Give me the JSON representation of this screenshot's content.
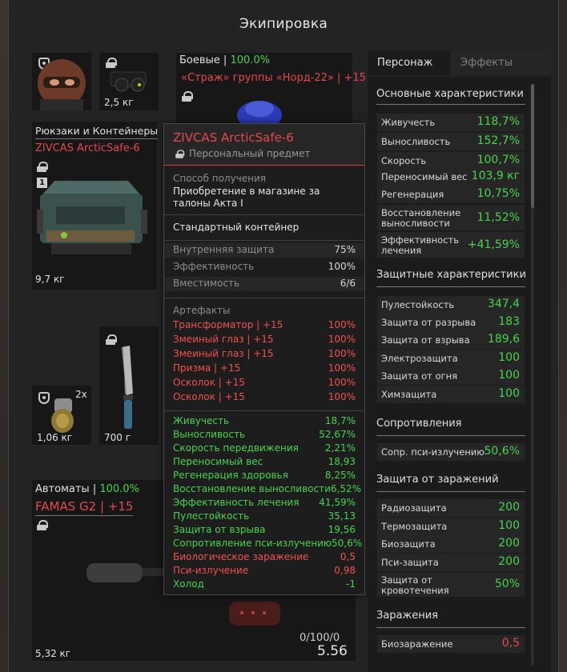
{
  "title": "Экипировка",
  "slots": {
    "head_weight": "2,5 кг",
    "armor_header_category": "Боевые",
    "armor_header_sep": " | ",
    "armor_header_pct": "100.0%",
    "armor_name": "«Страж» группы «Норд-22» | +15",
    "backpack_category": "Рюкзаки и Контейнеры",
    "backpack_name": "ZIVCAS ArcticSafe-6",
    "backpack_badge": "1",
    "backpack_weight": "9,7 кг",
    "grenade_count": "2x",
    "grenade_weight": "1,06 кг",
    "knife_weight": "700 г",
    "weapon_category": "Автоматы",
    "weapon_sep": " | ",
    "weapon_pct": "100.0%",
    "weapon_name": "FAMAS G2 | +15",
    "weapon_weight": "5,32 кг",
    "total_ratio": "0/100/0",
    "total_weight": "5.56"
  },
  "tooltip": {
    "name": "ZIVCAS ArcticSafe-6",
    "personal": "Персональный предмет",
    "acquire_label": "Способ получения",
    "acquire_value": "Приобретение в магазине за талоны Акта I",
    "type": "Стандартный контейнер",
    "props": [
      {
        "k": "Внутренняя защита",
        "v": "75%"
      },
      {
        "k": "Эффективность",
        "v": "100%"
      },
      {
        "k": "Вместимость",
        "v": "6/6"
      }
    ],
    "artifacts_label": "Артефакты",
    "artifacts": [
      {
        "k": "Трансформатор | +15",
        "v": "100%"
      },
      {
        "k": "Змеиный глаз | +15",
        "v": "100%"
      },
      {
        "k": "Змеиный глаз | +15",
        "v": "100%"
      },
      {
        "k": "Призма | +15",
        "v": "100%"
      },
      {
        "k": "Осколок | +15",
        "v": "100%"
      },
      {
        "k": "Осколок | +15",
        "v": "100%"
      }
    ],
    "effects": [
      {
        "k": "Живучесть",
        "v": "18,7%",
        "c": "green"
      },
      {
        "k": "Выносливость",
        "v": "52,67%",
        "c": "green"
      },
      {
        "k": "Скорость передвижения",
        "v": "2,21%",
        "c": "green"
      },
      {
        "k": "Переносимый вес",
        "v": "18,93",
        "c": "green"
      },
      {
        "k": "Регенерация здоровья",
        "v": "8,25%",
        "c": "green"
      },
      {
        "k": "Восстановление выносливости",
        "v": "6,52%",
        "c": "green"
      },
      {
        "k": "Эффективность лечения",
        "v": "41,59%",
        "c": "green"
      },
      {
        "k": "Пулестойкость",
        "v": "35,13",
        "c": "green"
      },
      {
        "k": "Защита от взрыва",
        "v": "19,56",
        "c": "green"
      },
      {
        "k": "Сопротивление пси-излучению",
        "v": "50,6%",
        "c": "green"
      },
      {
        "k": "Биологическое заражение",
        "v": "0,5",
        "c": "red"
      },
      {
        "k": "Пси-излучение",
        "v": "0,98",
        "c": "red"
      },
      {
        "k": "Холод",
        "v": "-1",
        "c": "green"
      }
    ]
  },
  "panel": {
    "tab_character": "Персонаж",
    "tab_effects": "Эффекты",
    "sections": [
      {
        "title": "Основные характеристики"
      },
      {
        "title": "Защитные характеристики"
      },
      {
        "title": "Сопротивления"
      },
      {
        "title": "Защита от заражений"
      },
      {
        "title": "Заражения"
      }
    ],
    "main": [
      {
        "k": "Живучесть",
        "v": "118,7%"
      },
      {
        "k": "Выносливость",
        "v": "152,7%"
      },
      {
        "k": "Скорость",
        "v": "100,7%"
      },
      {
        "k": "Переносимый вес",
        "v": "103,9 кг"
      },
      {
        "k": "Регенерация",
        "v": "10,75%"
      },
      {
        "k": "Восстановление выносливости",
        "v": "11,52%"
      },
      {
        "k": "Эффективность лечения",
        "v": "+41,59%"
      }
    ],
    "protect": [
      {
        "k": "Пулестойкость",
        "v": "347,4"
      },
      {
        "k": "Защита от разрыва",
        "v": "183"
      },
      {
        "k": "Защита от взрыва",
        "v": "189,6"
      },
      {
        "k": "Электрозащита",
        "v": "100"
      },
      {
        "k": "Защита от огня",
        "v": "100"
      },
      {
        "k": "Химзащита",
        "v": "100"
      }
    ],
    "resist": [
      {
        "k": "Сопр. пси-излучению",
        "v": "50,6%"
      }
    ],
    "infect_prot": [
      {
        "k": "Радиозащита",
        "v": "200"
      },
      {
        "k": "Термозащита",
        "v": "100"
      },
      {
        "k": "Биозащита",
        "v": "200"
      },
      {
        "k": "Пси-защита",
        "v": "200"
      },
      {
        "k": "Защита от кровотечения",
        "v": "50%"
      }
    ],
    "infect": [
      {
        "k": "Биозаражение",
        "v": "0,5"
      }
    ]
  }
}
